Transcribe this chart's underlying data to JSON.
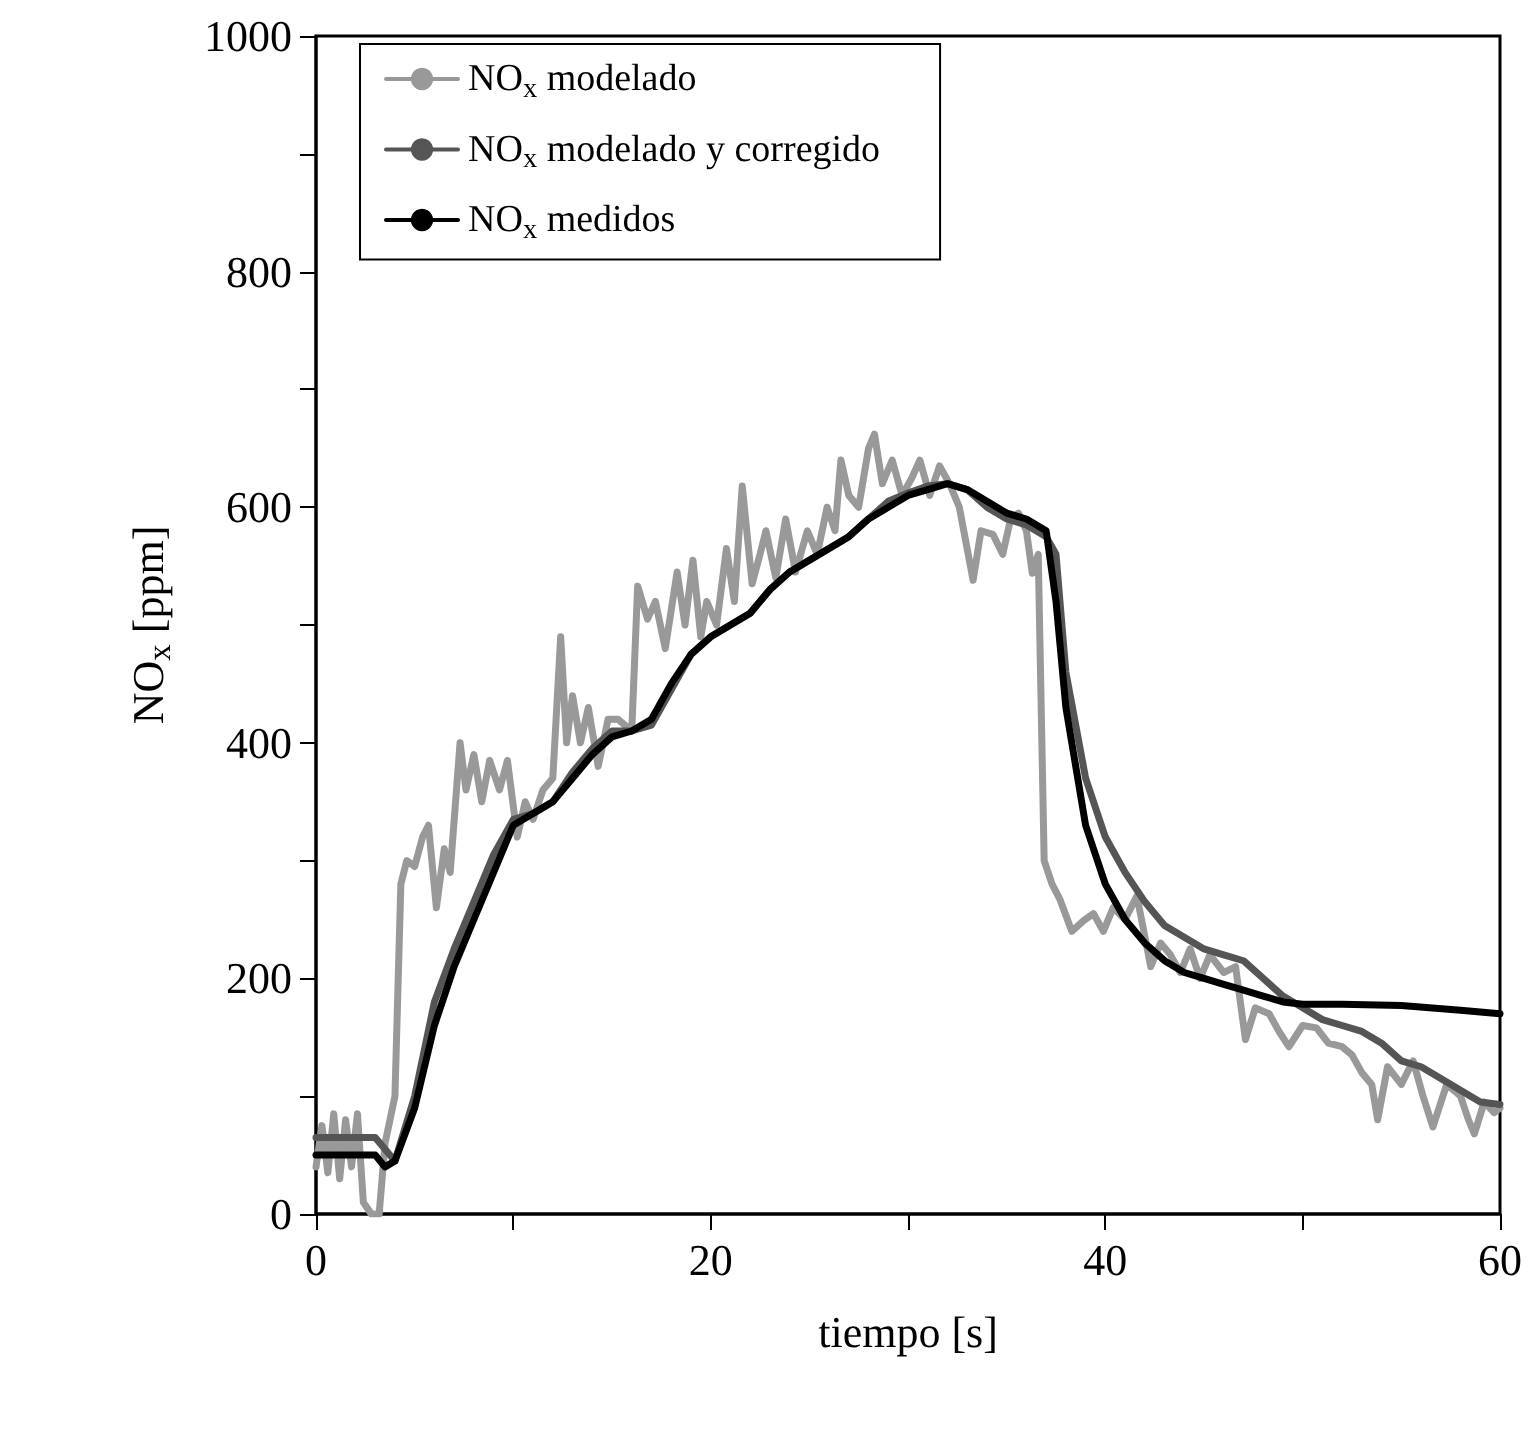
{
  "chart_data": {
    "type": "line",
    "xlabel": "tiempo [s]",
    "ylabel": "NO$_{x}$ [ppm]",
    "xlim": [
      0,
      60
    ],
    "xticks": [
      0,
      {
        "value": 10,
        "label": null
      },
      20,
      {
        "value": 30,
        "label": null
      },
      40,
      {
        "value": 50,
        "label": null
      },
      60
    ],
    "ylim": [
      0,
      1000
    ],
    "yticks": [
      0,
      {
        "value": 100,
        "label": null
      },
      200,
      {
        "value": 300,
        "label": null
      },
      400,
      {
        "value": 500,
        "label": null
      },
      600,
      {
        "value": 700,
        "label": null
      },
      800,
      {
        "value": 900,
        "label": null
      },
      1000
    ],
    "grid": false,
    "legend": "top left",
    "marker": "none",
    "line_style": "solid",
    "series": [
      {
        "name": "NO$_{x}$ modelado",
        "color": "#999999",
        "x": [
          0,
          0.3,
          0.6,
          0.9,
          1.2,
          1.5,
          1.8,
          2.1,
          2.4,
          2.8,
          3.2,
          3.5,
          4.0,
          4.3,
          4.6,
          5.0,
          5.4,
          5.7,
          6.1,
          6.5,
          6.8,
          7.3,
          7.6,
          8.0,
          8.4,
          8.8,
          9.3,
          9.7,
          10.2,
          10.6,
          11.0,
          11.5,
          12.0,
          12.4,
          12.7,
          13.0,
          13.4,
          13.8,
          14.3,
          14.8,
          15.3,
          16.0,
          16.3,
          16.8,
          17.2,
          17.7,
          18.3,
          18.7,
          19.1,
          19.5,
          19.8,
          20.3,
          20.8,
          21.2,
          21.6,
          22.1,
          22.5,
          22.8,
          23.3,
          23.8,
          24.3,
          24.9,
          25.4,
          25.9,
          26.3,
          26.6,
          27.0,
          27.5,
          28.0,
          28.3,
          28.7,
          29.2,
          29.7,
          30.2,
          30.6,
          31.1,
          31.6,
          32.1,
          32.6,
          33.3,
          33.7,
          34.3,
          34.8,
          35.2,
          35.6,
          36.0,
          36.3,
          36.6,
          36.9,
          37.3,
          37.7,
          38.3,
          38.9,
          39.4,
          39.9,
          40.4,
          41.0,
          41.6,
          42.3,
          42.8,
          43.3,
          43.8,
          44.3,
          44.8,
          45.3,
          46.0,
          46.6,
          47.1,
          47.6,
          48.3,
          48.8,
          49.3,
          50.0,
          50.7,
          51.3,
          52.0,
          52.5,
          53.0,
          53.5,
          53.8,
          54.3,
          55.0,
          55.6,
          56.1,
          56.6,
          57.3,
          58.0,
          58.4,
          58.7,
          59.2,
          59.7,
          60
        ],
        "values": [
          40,
          75,
          35,
          85,
          30,
          80,
          40,
          85,
          10,
          0,
          0,
          60,
          100,
          280,
          300,
          295,
          320,
          330,
          260,
          310,
          290,
          400,
          360,
          390,
          350,
          385,
          360,
          385,
          320,
          350,
          335,
          360,
          370,
          490,
          400,
          440,
          400,
          430,
          380,
          420,
          420,
          410,
          533,
          505,
          520,
          480,
          545,
          500,
          555,
          490,
          520,
          500,
          565,
          520,
          618,
          535,
          560,
          580,
          540,
          590,
          545,
          580,
          560,
          600,
          580,
          640,
          610,
          600,
          650,
          662,
          620,
          640,
          610,
          625,
          640,
          610,
          635,
          620,
          600,
          538,
          580,
          577,
          560,
          590,
          595,
          580,
          544,
          560,
          300,
          280,
          267,
          240,
          249,
          255,
          240,
          260,
          250,
          270,
          210,
          230,
          220,
          205,
          225,
          200,
          220,
          205,
          210,
          148,
          175,
          170,
          155,
          142,
          160,
          158,
          145,
          142,
          135,
          120,
          110,
          80,
          125,
          110,
          130,
          100,
          74,
          110,
          100,
          80,
          68,
          95,
          86,
          90
        ]
      },
      {
        "name": "NO$_{x}$ modelado y corregido",
        "color": "#555555",
        "x": [
          0,
          3,
          4,
          5,
          6,
          7,
          8,
          9,
          10,
          11,
          12,
          13,
          14,
          15,
          16,
          17,
          18,
          19,
          20,
          21,
          22,
          23,
          24,
          25,
          26,
          27,
          28,
          29,
          30,
          31,
          32,
          33,
          34,
          35,
          36,
          37,
          37.5,
          38,
          39,
          40,
          41,
          42,
          43,
          44,
          45,
          46,
          47,
          48,
          49,
          50,
          51,
          52,
          53,
          54,
          55,
          56,
          57,
          58,
          59,
          60
        ],
        "values": [
          65,
          65,
          45,
          100,
          180,
          225,
          265,
          305,
          335,
          340,
          350,
          375,
          395,
          410,
          410,
          415,
          445,
          475,
          490,
          500,
          510,
          530,
          545,
          555,
          565,
          575,
          590,
          605,
          612,
          618,
          620,
          615,
          600,
          590,
          585,
          575,
          560,
          460,
          370,
          320,
          290,
          265,
          245,
          235,
          225,
          220,
          215,
          200,
          185,
          175,
          165,
          160,
          155,
          145,
          130,
          125,
          115,
          105,
          95,
          93
        ]
      },
      {
        "name": "NO$_{x}$ medidos",
        "color": "#000000",
        "x": [
          0,
          3,
          3.5,
          4,
          5,
          6,
          7,
          8,
          9,
          10,
          11,
          12,
          13,
          14,
          15,
          16,
          17,
          18,
          19,
          20,
          21,
          22,
          23,
          24,
          25,
          26,
          27,
          28,
          29,
          30,
          31,
          32,
          33,
          34,
          35,
          36,
          37,
          37.5,
          38,
          39,
          40,
          41,
          42,
          43,
          44,
          45,
          46,
          47,
          48,
          49,
          50,
          52,
          55,
          58,
          60
        ],
        "values": [
          50,
          50,
          40,
          45,
          90,
          160,
          210,
          250,
          290,
          330,
          340,
          350,
          370,
          390,
          405,
          410,
          420,
          450,
          475,
          490,
          500,
          510,
          530,
          545,
          555,
          565,
          575,
          590,
          600,
          610,
          615,
          620,
          615,
          605,
          595,
          590,
          580,
          520,
          430,
          330,
          280,
          250,
          230,
          215,
          205,
          200,
          195,
          190,
          185,
          180,
          178,
          178,
          177,
          173,
          170
        ]
      }
    ]
  }
}
